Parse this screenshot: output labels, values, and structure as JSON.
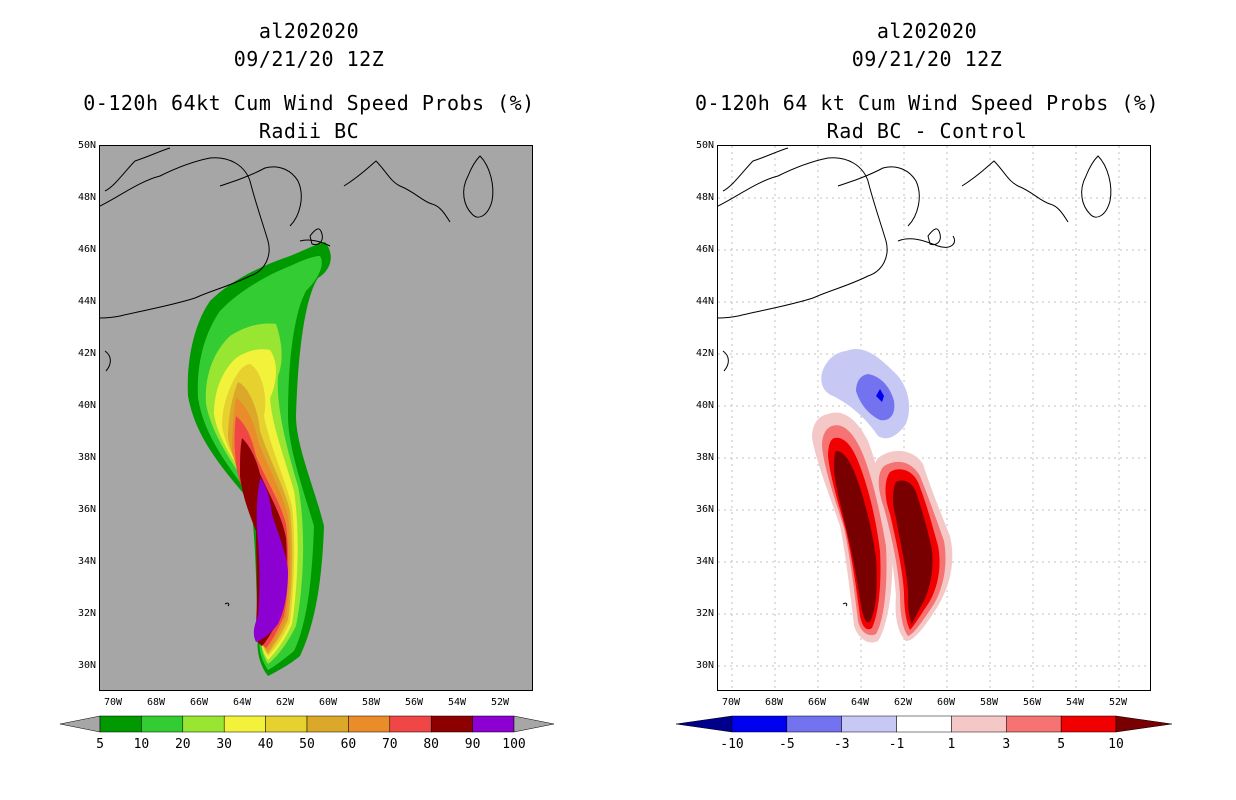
{
  "left": {
    "title_line1": "al202020",
    "title_line2": "09/21/20 12Z",
    "title_line3": "0-120h 64kt Cum Wind Speed Probs (%)",
    "title_line4": "Radii BC",
    "colorbar_labels": [
      "5",
      "10",
      "20",
      "30",
      "40",
      "50",
      "60",
      "70",
      "80",
      "90",
      "100"
    ],
    "colors": [
      "#009900",
      "#33cc33",
      "#99e632",
      "#f2f23a",
      "#e6d12e",
      "#dca82a",
      "#eb8c2a",
      "#f04646",
      "#8c0000",
      "#8c00d2"
    ],
    "background": "#a6a6a6"
  },
  "right": {
    "title_line1": "al202020",
    "title_line2": "09/21/20 12Z",
    "title_line3": "0-120h 64 kt Cum Wind Speed Probs (%)",
    "title_line4": "Rad BC - Control",
    "colorbar_labels": [
      "-10",
      "-5",
      "-3",
      "-1",
      "1",
      "3",
      "5",
      "10"
    ],
    "colors": [
      "#00008c",
      "#0000f0",
      "#7373f0",
      "#c8c8f5",
      "#ffffff",
      "#f5c8c8",
      "#f57373",
      "#f00000",
      "#780000"
    ]
  },
  "axes": {
    "lat_labels": [
      "50N",
      "48N",
      "46N",
      "44N",
      "42N",
      "40N",
      "38N",
      "36N",
      "34N",
      "32N",
      "30N"
    ],
    "lon_labels": [
      "70W",
      "68W",
      "66W",
      "64W",
      "62W",
      "60W",
      "58W",
      "56W",
      "54W",
      "52W"
    ]
  }
}
